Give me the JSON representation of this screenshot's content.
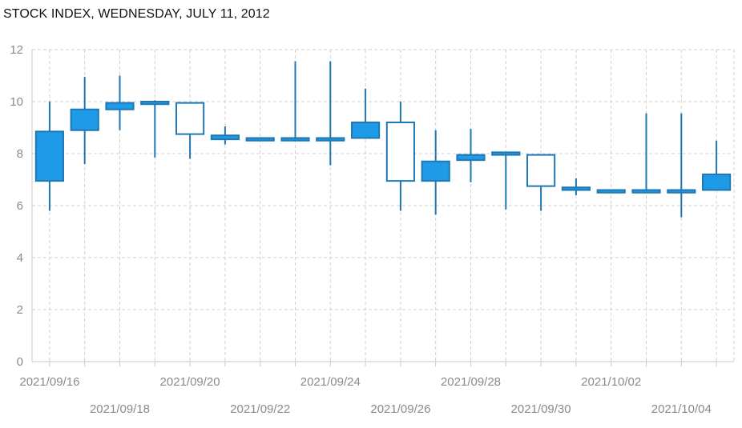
{
  "header": {
    "title": "STOCK INDEX, WEDNESDAY, JULY 11, 2012"
  },
  "chart_data": {
    "type": "candlestick",
    "title": "STOCK INDEX, WEDNESDAY, JULY 11, 2012",
    "xlabel": "",
    "ylabel": "",
    "ylim": [
      0,
      12
    ],
    "yticks": [
      0,
      2,
      4,
      6,
      8,
      10,
      12
    ],
    "grid": true,
    "colors": {
      "up": "#1e9ae6",
      "down": "#ffffff",
      "stroke": "#1f77b4",
      "grid": "#d0d0d0"
    },
    "x_tick_labels_row1": [
      "2021/09/16",
      "2021/09/20",
      "2021/09/24",
      "2021/09/28",
      "2021/10/02"
    ],
    "x_tick_labels_row2": [
      "2021/09/18",
      "2021/09/22",
      "2021/09/26",
      "2021/09/30",
      "2021/10/04"
    ],
    "candles": [
      {
        "date": "2021/09/16",
        "open": 6.95,
        "high": 10.0,
        "low": 5.8,
        "close": 8.85
      },
      {
        "date": "2021/09/17",
        "open": 8.9,
        "high": 10.95,
        "low": 7.6,
        "close": 9.7
      },
      {
        "date": "2021/09/18",
        "open": 9.7,
        "high": 11.0,
        "low": 8.9,
        "close": 9.95
      },
      {
        "date": "2021/09/19",
        "open": 9.9,
        "high": 10.05,
        "low": 7.85,
        "close": 10.0
      },
      {
        "date": "2021/09/20",
        "open": 9.95,
        "high": 9.95,
        "low": 7.8,
        "close": 8.75
      },
      {
        "date": "2021/09/21",
        "open": 8.55,
        "high": 9.05,
        "low": 8.35,
        "close": 8.7
      },
      {
        "date": "2021/09/22",
        "open": 8.5,
        "high": 8.6,
        "low": 8.5,
        "close": 8.6
      },
      {
        "date": "2021/09/23",
        "open": 8.5,
        "high": 11.55,
        "low": 8.5,
        "close": 8.6
      },
      {
        "date": "2021/09/24",
        "open": 8.5,
        "high": 11.55,
        "low": 7.55,
        "close": 8.6
      },
      {
        "date": "2021/09/25",
        "open": 8.6,
        "high": 10.5,
        "low": 8.6,
        "close": 9.2
      },
      {
        "date": "2021/09/26",
        "open": 9.2,
        "high": 10.0,
        "low": 5.8,
        "close": 6.95
      },
      {
        "date": "2021/09/27",
        "open": 6.95,
        "high": 8.9,
        "low": 5.65,
        "close": 7.7
      },
      {
        "date": "2021/09/28",
        "open": 7.75,
        "high": 8.95,
        "low": 6.9,
        "close": 7.95
      },
      {
        "date": "2021/09/29",
        "open": 7.95,
        "high": 8.05,
        "low": 5.85,
        "close": 8.05
      },
      {
        "date": "2021/09/30",
        "open": 7.95,
        "high": 7.95,
        "low": 5.8,
        "close": 6.75
      },
      {
        "date": "2021/10/01",
        "open": 6.6,
        "high": 7.05,
        "low": 6.4,
        "close": 6.7
      },
      {
        "date": "2021/10/02",
        "open": 6.5,
        "high": 6.6,
        "low": 6.5,
        "close": 6.6
      },
      {
        "date": "2021/10/03",
        "open": 6.5,
        "high": 9.55,
        "low": 6.5,
        "close": 6.6
      },
      {
        "date": "2021/10/04",
        "open": 6.5,
        "high": 9.55,
        "low": 5.55,
        "close": 6.6
      },
      {
        "date": "2021/10/05",
        "open": 6.6,
        "high": 8.5,
        "low": 6.6,
        "close": 7.2
      }
    ]
  }
}
